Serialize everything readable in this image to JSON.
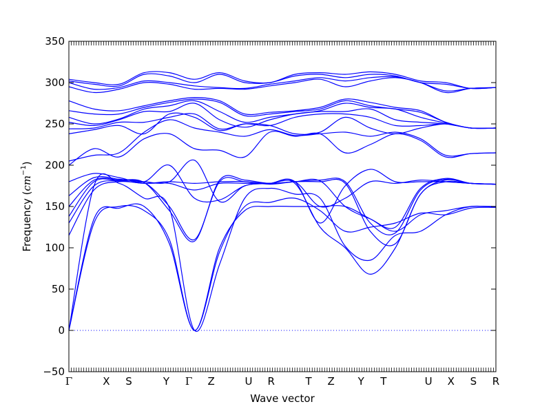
{
  "chart_data": {
    "type": "line",
    "title": "",
    "xlabel": "Wave vector",
    "ylabel": "Frequency (",
    "ylabel_unit": "cm",
    "ylabel_unit_exp": "−1",
    "ylabel_close": ")",
    "ylim": [
      -50,
      350
    ],
    "yticks": [
      -50,
      0,
      50,
      100,
      150,
      200,
      250,
      300,
      350
    ],
    "ytick_labels": [
      "−50",
      "0",
      "50",
      "100",
      "150",
      "200",
      "250",
      "300",
      "350"
    ],
    "high_symmetry_points": [
      {
        "label": "Γ",
        "x": 0.0
      },
      {
        "label": "X",
        "x": 0.5
      },
      {
        "label": "S",
        "x": 0.8
      },
      {
        "label": "Y",
        "x": 1.3
      },
      {
        "label": "Γ",
        "x": 1.6
      },
      {
        "label": "Z",
        "x": 1.9
      },
      {
        "label": "U",
        "x": 2.4
      },
      {
        "label": "R",
        "x": 2.7
      },
      {
        "label": "T",
        "x": 3.2
      },
      {
        "label": "Z",
        "x": 3.5
      },
      {
        "label": "Y",
        "x": 3.9
      },
      {
        "label": "T",
        "x": 4.2
      },
      {
        "label": "U",
        "x": 4.8
      },
      {
        "label": "X",
        "x": 5.1
      },
      {
        "label": "S",
        "x": 5.4
      },
      {
        "label": "R",
        "x": 5.7
      }
    ],
    "zero_line": {
      "y": 0,
      "style": "dotted"
    },
    "line_color": "#0000ff",
    "series": [
      {
        "values": [
          0,
          130,
          150,
          145,
          110,
          0,
          100,
          145,
          150,
          150,
          150,
          150,
          135,
          120,
          140,
          145,
          150,
          150
        ]
      },
      {
        "values": [
          0,
          135,
          148,
          150,
          105,
          0,
          95,
          150,
          155,
          160,
          145,
          120,
          125,
          130,
          142,
          140,
          148,
          149
        ]
      },
      {
        "values": [
          0,
          175,
          178,
          160,
          148,
          0,
          80,
          160,
          172,
          165,
          160,
          102,
          85,
          115,
          120,
          140,
          150,
          149
        ]
      },
      {
        "values": [
          115,
          170,
          180,
          178,
          178,
          170,
          178,
          178,
          178,
          178,
          125,
          100,
          68,
          100,
          165,
          180,
          178,
          177
        ]
      },
      {
        "values": [
          130,
          175,
          181,
          178,
          180,
          178,
          180,
          180,
          177,
          180,
          180,
          178,
          120,
          105,
          165,
          182,
          178,
          177
        ]
      },
      {
        "values": [
          138,
          180,
          181,
          179,
          150,
          110,
          180,
          180,
          178,
          180,
          182,
          180,
          130,
          118,
          170,
          183,
          178,
          177
        ]
      },
      {
        "values": [
          150,
          182,
          182,
          179,
          145,
          108,
          182,
          182,
          178,
          180,
          181,
          150,
          135,
          125,
          172,
          184,
          178,
          177
        ]
      },
      {
        "values": [
          163,
          185,
          183,
          180,
          180,
          206,
          156,
          175,
          178,
          180,
          150,
          160,
          180,
          178,
          182,
          180,
          178,
          177
        ]
      },
      {
        "values": [
          180,
          190,
          185,
          180,
          200,
          160,
          158,
          175,
          178,
          180,
          130,
          175,
          195,
          180,
          180,
          180,
          178,
          177
        ]
      },
      {
        "values": [
          200,
          220,
          210,
          232,
          238,
          220,
          218,
          210,
          240,
          235,
          238,
          215,
          225,
          238,
          230,
          210,
          214,
          215
        ]
      },
      {
        "values": [
          205,
          212,
          215,
          240,
          255,
          245,
          240,
          235,
          243,
          236,
          238,
          240,
          235,
          240,
          232,
          212,
          214,
          215
        ]
      },
      {
        "values": [
          238,
          243,
          248,
          238,
          262,
          258,
          242,
          250,
          248,
          238,
          240,
          258,
          245,
          238,
          245,
          250,
          245,
          245
        ]
      },
      {
        "values": [
          244,
          245,
          252,
          252,
          258,
          262,
          244,
          250,
          248,
          258,
          262,
          262,
          258,
          248,
          248,
          250,
          245,
          245
        ]
      },
      {
        "values": [
          252,
          248,
          255,
          265,
          265,
          275,
          255,
          246,
          255,
          262,
          265,
          265,
          268,
          255,
          252,
          250,
          245,
          245
        ]
      },
      {
        "values": [
          258,
          250,
          256,
          268,
          272,
          278,
          265,
          252,
          258,
          262,
          266,
          275,
          270,
          268,
          258,
          251,
          245,
          245
        ]
      },
      {
        "values": [
          266,
          262,
          262,
          270,
          276,
          280,
          276,
          260,
          262,
          265,
          268,
          278,
          272,
          268,
          264,
          252,
          245,
          245
        ]
      },
      {
        "values": [
          278,
          268,
          266,
          272,
          278,
          282,
          278,
          262,
          264,
          266,
          270,
          280,
          276,
          270,
          266,
          252,
          245,
          245
        ]
      },
      {
        "values": [
          295,
          288,
          292,
          300,
          298,
          292,
          293,
          292,
          296,
          300,
          304,
          295,
          302,
          306,
          300,
          288,
          293,
          294
        ]
      },
      {
        "values": [
          300,
          292,
          294,
          302,
          300,
          296,
          294,
          293,
          298,
          302,
          306,
          302,
          306,
          307,
          300,
          290,
          293,
          294
        ]
      },
      {
        "values": [
          302,
          298,
          296,
          310,
          308,
          300,
          310,
          300,
          300,
          308,
          310,
          306,
          310,
          308,
          300,
          298,
          293,
          294
        ]
      },
      {
        "values": [
          304,
          300,
          298,
          312,
          312,
          304,
          312,
          302,
          300,
          310,
          312,
          310,
          313,
          310,
          302,
          300,
          293,
          294
        ]
      }
    ]
  }
}
